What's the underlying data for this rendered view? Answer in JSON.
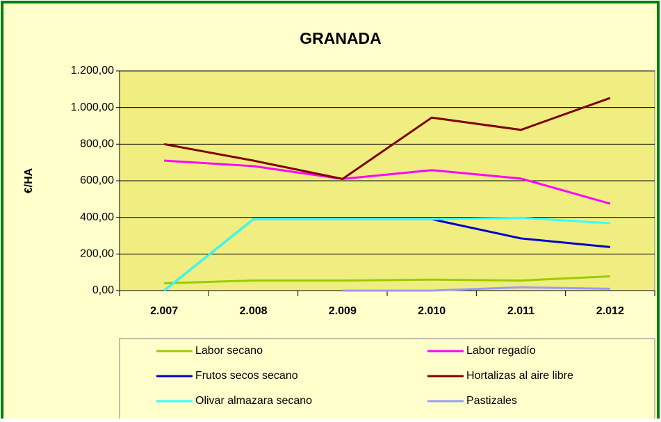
{
  "chart_data": {
    "type": "line",
    "title": "GRANADA",
    "y_label": "€/HA",
    "categories": [
      "2.007",
      "2.008",
      "2.009",
      "2.010",
      "2.011",
      "2.012"
    ],
    "series": [
      {
        "name": "Labor secano",
        "color": "#99CC00",
        "values": [
          40,
          55,
          55,
          60,
          55,
          78
        ]
      },
      {
        "name": "Labor regadío",
        "color": "#FF00FF",
        "values": [
          710,
          680,
          610,
          658,
          612,
          475
        ]
      },
      {
        "name": "Frutos secos secano",
        "color": "#0000CC",
        "values": [
          0,
          390,
          390,
          390,
          285,
          238
        ]
      },
      {
        "name": "Hortalizas al aire libre",
        "color": "#800000",
        "values": [
          800,
          710,
          610,
          945,
          878,
          1052
        ]
      },
      {
        "name": "Olivar almazara secano",
        "color": "#33FFFF",
        "values": [
          0,
          390,
          390,
          390,
          398,
          368
        ]
      },
      {
        "name": "Pastizales",
        "color": "#9999FF",
        "values": [
          null,
          null,
          0,
          0,
          18,
          10
        ]
      }
    ],
    "ylim": [
      0,
      1200
    ],
    "yticks": [
      {
        "value": 0,
        "label": "0,00"
      },
      {
        "value": 200,
        "label": "200,00"
      },
      {
        "value": 400,
        "label": "400,00"
      },
      {
        "value": 600,
        "label": "600,00"
      },
      {
        "value": 800,
        "label": "800,00"
      },
      {
        "value": 1000,
        "label": "1.000,00"
      },
      {
        "value": 1200,
        "label": "1.200,00"
      }
    ],
    "grid": true,
    "legend": "bottom"
  }
}
